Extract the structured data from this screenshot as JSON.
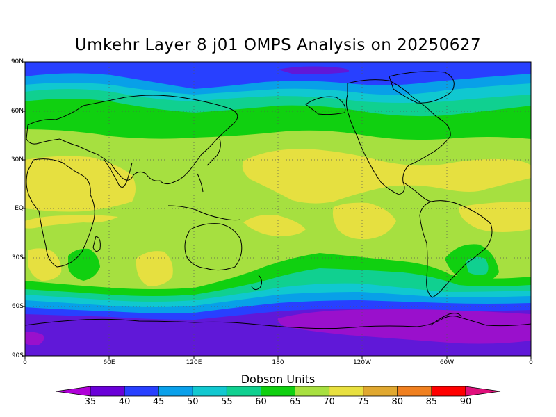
{
  "title": "Umkehr Layer 8 j01 OMPS Analysis on 20250627",
  "y_axis_labels": [
    "90N",
    "60N",
    "30N",
    "EQ",
    "30S",
    "60S",
    "90S"
  ],
  "x_axis_labels": [
    "0",
    "60E",
    "120E",
    "180",
    "120W",
    "60W",
    "0"
  ],
  "colorbar": {
    "title": "Dobson Units",
    "ticks": [
      "35",
      "40",
      "45",
      "50",
      "55",
      "60",
      "65",
      "70",
      "75",
      "80",
      "85",
      "90"
    ],
    "colors": [
      "#b000d8",
      "#6a00d8",
      "#2840ff",
      "#0aa0ea",
      "#12c8d0",
      "#10d090",
      "#10d010",
      "#a8e040",
      "#e8e040",
      "#e0a830",
      "#f08020",
      "#ff0000",
      "#e0107c"
    ]
  },
  "map_bands": {
    "colors": {
      "c35": "#9a10cc",
      "c40": "#6018d8",
      "c45": "#2840ff",
      "c50": "#08a0e8",
      "c55": "#10c8d0",
      "c60": "#10d090",
      "c65": "#10d010",
      "c70": "#a6e040",
      "c75": "#e6e040"
    }
  },
  "grid": "dotted"
}
